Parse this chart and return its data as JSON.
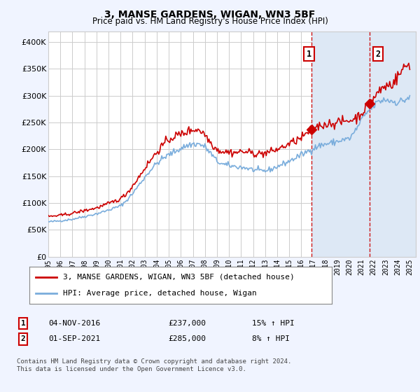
{
  "title": "3, MANSE GARDENS, WIGAN, WN3 5BF",
  "subtitle": "Price paid vs. HM Land Registry's House Price Index (HPI)",
  "legend_label_red": "3, MANSE GARDENS, WIGAN, WN3 5BF (detached house)",
  "legend_label_blue": "HPI: Average price, detached house, Wigan",
  "annotation1_label": "1",
  "annotation1_date": "04-NOV-2016",
  "annotation1_price": "£237,000",
  "annotation1_hpi": "15% ↑ HPI",
  "annotation2_label": "2",
  "annotation2_date": "01-SEP-2021",
  "annotation2_price": "£285,000",
  "annotation2_hpi": "8% ↑ HPI",
  "footnote": "Contains HM Land Registry data © Crown copyright and database right 2024.\nThis data is licensed under the Open Government Licence v3.0.",
  "xlim_start": 1995.0,
  "xlim_end": 2025.5,
  "ylim_bottom": 0,
  "ylim_top": 420000,
  "yticks": [
    0,
    50000,
    100000,
    150000,
    200000,
    250000,
    300000,
    350000,
    400000
  ],
  "ytick_labels": [
    "£0",
    "£50K",
    "£100K",
    "£150K",
    "£200K",
    "£250K",
    "£300K",
    "£350K",
    "£400K"
  ],
  "xticks": [
    1995,
    1996,
    1997,
    1998,
    1999,
    2000,
    2001,
    2002,
    2003,
    2004,
    2005,
    2006,
    2007,
    2008,
    2009,
    2010,
    2011,
    2012,
    2013,
    2014,
    2015,
    2016,
    2017,
    2018,
    2019,
    2020,
    2021,
    2022,
    2023,
    2024,
    2025
  ],
  "sale1_x": 2016.84,
  "sale1_y": 237000,
  "sale2_x": 2021.67,
  "sale2_y": 285000,
  "red_color": "#cc0000",
  "blue_color": "#7aaddc",
  "shade_color": "#dde8f5",
  "vline_color": "#cc0000",
  "background_color": "#f0f4ff",
  "plot_bg_color": "#ffffff",
  "grid_color": "#cccccc",
  "annot_box_color": "#ffffff",
  "annot_box_edge": "#cc0000"
}
